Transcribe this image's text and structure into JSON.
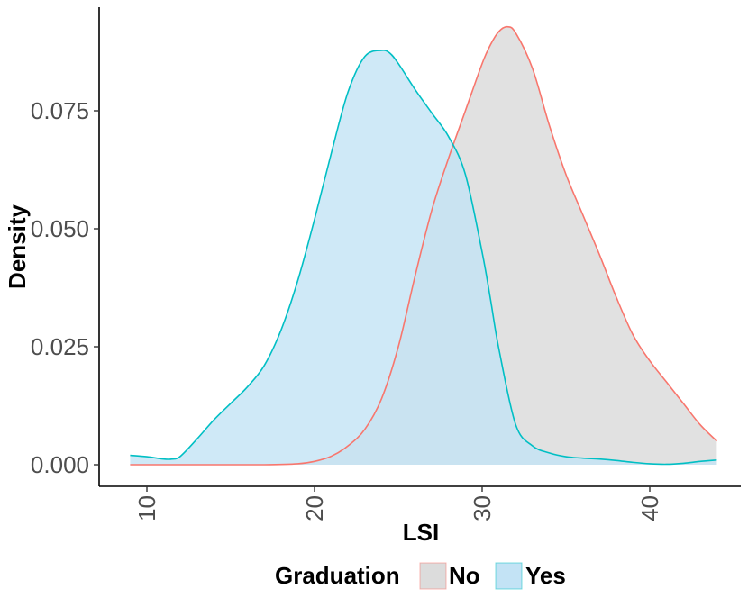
{
  "chart_data": {
    "type": "area",
    "subtype": "density",
    "title": "",
    "xlabel": "LSI",
    "ylabel": "Density",
    "xlim": [
      9,
      44
    ],
    "ylim": [
      0,
      0.093
    ],
    "x_ticks": [
      10,
      20,
      30,
      40
    ],
    "x_tick_labels": [
      "10",
      "20",
      "30",
      "40"
    ],
    "y_ticks": [
      0,
      0.025,
      0.05,
      0.075
    ],
    "y_tick_labels": [
      "0.000",
      "0.025",
      "0.050",
      "0.075"
    ],
    "grid": false,
    "legend": {
      "title": "Graduation",
      "position": "bottom",
      "entries": [
        "No",
        "Yes"
      ]
    },
    "series": [
      {
        "name": "No",
        "line_color": "#F8766D",
        "fill_color": "#DCDCDC",
        "fill_opacity": 0.85,
        "x": [
          9,
          12,
          15,
          17,
          19,
          20,
          21,
          22,
          23,
          24,
          25,
          26,
          27,
          28,
          29,
          30,
          30.5,
          31,
          31.5,
          32,
          33,
          34,
          35,
          36,
          37,
          38,
          39,
          40,
          41,
          42,
          43,
          44
        ],
        "y": [
          0,
          0,
          0,
          0,
          0.0002,
          0.0007,
          0.0018,
          0.004,
          0.0075,
          0.014,
          0.025,
          0.04,
          0.054,
          0.065,
          0.075,
          0.085,
          0.089,
          0.0918,
          0.0928,
          0.0915,
          0.084,
          0.072,
          0.0615,
          0.053,
          0.0445,
          0.0355,
          0.0275,
          0.022,
          0.0175,
          0.013,
          0.0085,
          0.005
        ]
      },
      {
        "name": "Yes",
        "line_color": "#00BFC4",
        "fill_color": "#C3E3F5",
        "fill_opacity": 0.8,
        "x": [
          9,
          10,
          11,
          11.5,
          12,
          13,
          14,
          15,
          16,
          17,
          18,
          19,
          20,
          21,
          22,
          23,
          24,
          24.5,
          25,
          26,
          27,
          28,
          29,
          30,
          30.5,
          31,
          32,
          33,
          34,
          35,
          36,
          37,
          38,
          39,
          40,
          41,
          42,
          43,
          44
        ],
        "y": [
          0.002,
          0.0017,
          0.0012,
          0.0012,
          0.0018,
          0.0055,
          0.0095,
          0.013,
          0.0165,
          0.021,
          0.0285,
          0.039,
          0.052,
          0.066,
          0.079,
          0.0865,
          0.0878,
          0.0872,
          0.085,
          0.0795,
          0.0745,
          0.0695,
          0.0615,
          0.045,
          0.035,
          0.0245,
          0.0085,
          0.004,
          0.0025,
          0.0017,
          0.0014,
          0.0012,
          0.0009,
          0.0005,
          0.0002,
          0.0001,
          0.0003,
          0.0007,
          0.001
        ]
      }
    ]
  }
}
